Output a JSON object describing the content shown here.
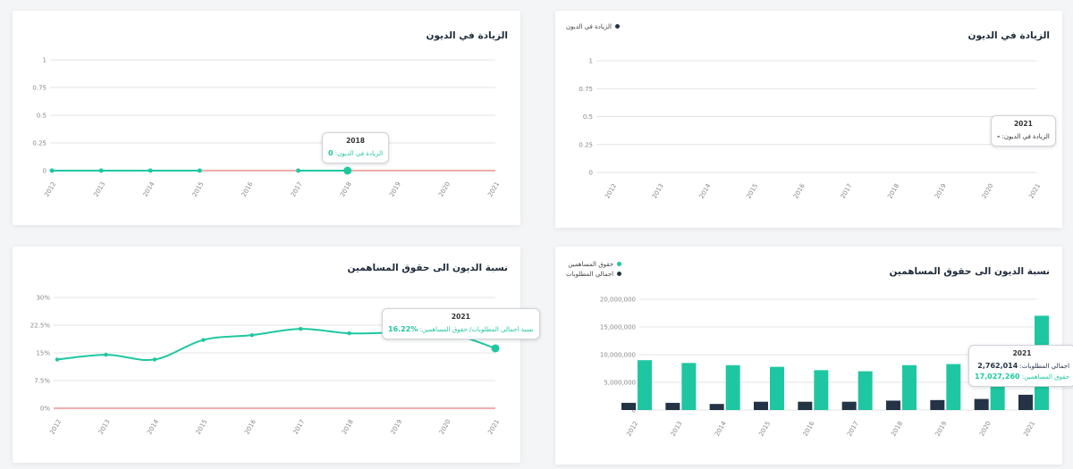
{
  "colors": {
    "teal": "#1ec7a1",
    "navy": "#243447",
    "red": "#e05b5b",
    "grid": "#e3e3e3",
    "axis": "#888888"
  },
  "cards": {
    "top_left": {
      "title": "الزيادة في الديون"
    },
    "top_right": {
      "title": "الزيادة في الديون",
      "legend": [
        "الزيادة في الديون"
      ]
    },
    "bottom_left": {
      "title": "نسبة الديون الى حقوق المساهمين"
    },
    "bottom_right": {
      "title": "نسبة الديون الى حقوق المساهمين",
      "legend": [
        "حقوق المساهمين",
        "اجمالي المطلوبات"
      ]
    }
  },
  "tooltips": {
    "top_left": {
      "year": "2018",
      "label": "الزيادة في الديون:",
      "value": "0"
    },
    "top_right": {
      "year": "2021",
      "label": "الزيادة في الديون:",
      "value": "-"
    },
    "bottom_left": {
      "year": "2021",
      "label": "نسبة اجمالي المطلوبات/ حقوق المساهمين:",
      "value": "%16.22"
    },
    "bottom_right": {
      "year": "2021",
      "line1_label": "اجمالي المطلوبات:",
      "line1_value": "2,762,014",
      "line2_label": "حقوق المساهمين:",
      "line2_value": "17,027,260"
    }
  },
  "chart_data": [
    {
      "id": "top_left",
      "type": "line",
      "title": "الزيادة في الديون",
      "categories": [
        "2012",
        "2013",
        "2014",
        "2015",
        "2016",
        "2017",
        "2018",
        "2019",
        "2020",
        "2021"
      ],
      "yticks": [
        "0",
        "0.25",
        "0.5",
        "0.75",
        "1"
      ],
      "ylim": [
        0,
        1
      ],
      "series": [
        {
          "name": "الزيادة في الديون",
          "values": [
            0,
            0,
            0,
            0,
            null,
            0,
            0,
            null,
            null,
            null
          ]
        }
      ],
      "grid": true
    },
    {
      "id": "top_right",
      "type": "line",
      "title": "الزيادة في الديون",
      "categories": [
        "2012",
        "2013",
        "2014",
        "2015",
        "2016",
        "2017",
        "2018",
        "2019",
        "2020",
        "2021"
      ],
      "yticks": [
        "0",
        "0.25",
        "0.5",
        "0.75",
        "1"
      ],
      "ylim": [
        0,
        1
      ],
      "series": [
        {
          "name": "الزيادة في الديون",
          "values": [
            null,
            null,
            null,
            null,
            null,
            null,
            null,
            null,
            null,
            null
          ]
        }
      ],
      "legend": "top-right",
      "grid": true
    },
    {
      "id": "bottom_left",
      "type": "line",
      "title": "نسبة الديون الى حقوق المساهمين",
      "categories": [
        "2012",
        "2013",
        "2014",
        "2015",
        "2016",
        "2017",
        "2018",
        "2019",
        "2020",
        "2021"
      ],
      "yticks": [
        "0%",
        "7.5%",
        "15%",
        "22.5%",
        "30%"
      ],
      "ylim": [
        0,
        30
      ],
      "series": [
        {
          "name": "نسبة اجمالي المطلوبات/ حقوق المساهمين",
          "values": [
            13.2,
            14.5,
            13.2,
            18.5,
            19.8,
            21.5,
            20.3,
            20.5,
            20.5,
            16.22
          ]
        }
      ],
      "grid": true
    },
    {
      "id": "bottom_right",
      "type": "bar",
      "title": "نسبة الديون الى حقوق المساهمين",
      "categories": [
        "2012",
        "2013",
        "2014",
        "2015",
        "2016",
        "2017",
        "2018",
        "2019",
        "2020",
        "2021"
      ],
      "yticks": [
        "0",
        "5,000,000",
        "10,000,000",
        "15,000,000",
        "20,000,000"
      ],
      "ylim": [
        0,
        20000000
      ],
      "series": [
        {
          "name": "اجمالي المطلوبات",
          "values": [
            1300000,
            1300000,
            1100000,
            1500000,
            1500000,
            1500000,
            1700000,
            1800000,
            2000000,
            2762014
          ]
        },
        {
          "name": "حقوق المساهمين",
          "values": [
            9000000,
            8500000,
            8100000,
            7800000,
            7200000,
            7000000,
            8100000,
            8300000,
            8200000,
            17027260
          ]
        }
      ],
      "legend": "top-right",
      "grid": true
    }
  ]
}
